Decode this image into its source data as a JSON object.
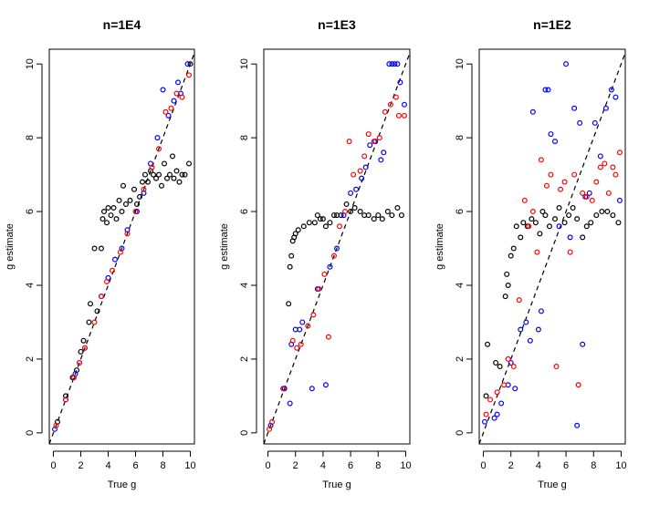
{
  "chart_data": [
    {
      "type": "scatter",
      "title": "n=1E4",
      "xlabel": "True g",
      "ylabel": "g estimate",
      "xlim": [
        -0.3,
        10.3
      ],
      "ylim": [
        -0.3,
        10.4
      ],
      "xticks": [
        "0",
        "2",
        "4",
        "6",
        "8",
        "10"
      ],
      "yticks": [
        "0",
        "2",
        "4",
        "6",
        "8",
        "10"
      ],
      "grid": false,
      "reference_line": "y = x (dashed)",
      "series": [
        {
          "color": "#000000",
          "points": [
            [
              0.3,
              0.3
            ],
            [
              0.9,
              1.0
            ],
            [
              1.4,
              1.5
            ],
            [
              1.7,
              1.7
            ],
            [
              2.0,
              2.2
            ],
            [
              2.2,
              2.5
            ],
            [
              2.6,
              3.0
            ],
            [
              2.7,
              3.5
            ],
            [
              3.0,
              5.0
            ],
            [
              3.2,
              3.3
            ],
            [
              3.5,
              5.0
            ],
            [
              3.6,
              5.8
            ],
            [
              3.7,
              6.0
            ],
            [
              3.9,
              5.7
            ],
            [
              4.0,
              6.1
            ],
            [
              4.2,
              5.9
            ],
            [
              4.4,
              6.1
            ],
            [
              4.6,
              5.8
            ],
            [
              4.8,
              6.3
            ],
            [
              5.0,
              6.0
            ],
            [
              5.1,
              6.7
            ],
            [
              5.3,
              6.2
            ],
            [
              5.6,
              6.3
            ],
            [
              5.9,
              6.6
            ],
            [
              6.1,
              6.2
            ],
            [
              6.3,
              6.4
            ],
            [
              6.5,
              6.8
            ],
            [
              6.7,
              7.0
            ],
            [
              6.9,
              6.8
            ],
            [
              7.1,
              7.1
            ],
            [
              7.3,
              7.0
            ],
            [
              7.5,
              6.9
            ],
            [
              7.7,
              7.0
            ],
            [
              7.9,
              6.7
            ],
            [
              8.1,
              7.3
            ],
            [
              8.3,
              6.9
            ],
            [
              8.5,
              7.0
            ],
            [
              8.7,
              7.5
            ],
            [
              8.8,
              6.9
            ],
            [
              9.0,
              7.1
            ],
            [
              9.2,
              6.8
            ],
            [
              9.4,
              7.0
            ],
            [
              9.6,
              7.0
            ],
            [
              9.9,
              7.3
            ],
            [
              10.0,
              10.0
            ]
          ]
        },
        {
          "color": "#0000ff",
          "points": [
            [
              0.1,
              0.1
            ],
            [
              0.9,
              0.9
            ],
            [
              1.6,
              1.6
            ],
            [
              1.9,
              1.9
            ],
            [
              2.3,
              2.3
            ],
            [
              3.5,
              3.7
            ],
            [
              4.0,
              4.2
            ],
            [
              4.5,
              4.7
            ],
            [
              5.0,
              5.0
            ],
            [
              5.4,
              5.5
            ],
            [
              6.1,
              6.0
            ],
            [
              6.6,
              6.5
            ],
            [
              7.1,
              7.3
            ],
            [
              7.6,
              8.0
            ],
            [
              8.0,
              9.3
            ],
            [
              8.4,
              8.6
            ],
            [
              8.8,
              9.0
            ],
            [
              9.1,
              9.5
            ],
            [
              9.3,
              9.2
            ],
            [
              9.8,
              10.0
            ]
          ]
        },
        {
          "color": "#ff0000",
          "points": [
            [
              0.2,
              0.2
            ],
            [
              0.9,
              0.9
            ],
            [
              1.5,
              1.5
            ],
            [
              1.9,
              1.9
            ],
            [
              2.3,
              2.3
            ],
            [
              3.0,
              3.0
            ],
            [
              3.5,
              3.7
            ],
            [
              3.9,
              4.1
            ],
            [
              4.3,
              4.4
            ],
            [
              4.9,
              4.9
            ],
            [
              5.4,
              5.4
            ],
            [
              6.0,
              6.0
            ],
            [
              6.6,
              6.6
            ],
            [
              7.2,
              7.2
            ],
            [
              7.7,
              7.7
            ],
            [
              8.2,
              8.7
            ],
            [
              8.6,
              8.8
            ],
            [
              9.0,
              9.2
            ],
            [
              9.4,
              9.1
            ],
            [
              9.9,
              9.7
            ]
          ]
        }
      ]
    },
    {
      "type": "scatter",
      "title": "n=1E3",
      "xlabel": "True g",
      "ylabel": "g estimate",
      "xlim": [
        -0.3,
        10.3
      ],
      "ylim": [
        -0.3,
        10.4
      ],
      "xticks": [
        "0",
        "2",
        "4",
        "6",
        "8",
        "10"
      ],
      "yticks": [
        "0",
        "2",
        "4",
        "6",
        "8",
        "10"
      ],
      "grid": false,
      "reference_line": "y = x (dashed)",
      "series": [
        {
          "color": "#000000",
          "points": [
            [
              1.2,
              1.2
            ],
            [
              1.5,
              3.5
            ],
            [
              1.6,
              4.5
            ],
            [
              1.7,
              4.8
            ],
            [
              1.8,
              5.2
            ],
            [
              1.9,
              5.3
            ],
            [
              2.0,
              5.4
            ],
            [
              2.2,
              5.5
            ],
            [
              2.6,
              5.6
            ],
            [
              3.0,
              5.7
            ],
            [
              3.4,
              5.7
            ],
            [
              3.6,
              5.9
            ],
            [
              3.8,
              5.8
            ],
            [
              4.0,
              5.8
            ],
            [
              4.2,
              5.6
            ],
            [
              4.5,
              5.7
            ],
            [
              4.8,
              5.9
            ],
            [
              5.0,
              5.9
            ],
            [
              5.3,
              5.9
            ],
            [
              5.7,
              6.2
            ],
            [
              6.0,
              6.0
            ],
            [
              6.3,
              6.1
            ],
            [
              6.7,
              6.0
            ],
            [
              7.0,
              5.9
            ],
            [
              7.3,
              5.9
            ],
            [
              7.7,
              5.8
            ],
            [
              8.0,
              5.9
            ],
            [
              8.3,
              5.8
            ],
            [
              8.7,
              6.0
            ],
            [
              9.0,
              5.9
            ],
            [
              9.4,
              6.1
            ],
            [
              9.7,
              5.9
            ]
          ]
        },
        {
          "color": "#0000ff",
          "points": [
            [
              0.2,
              0.2
            ],
            [
              1.2,
              1.2
            ],
            [
              1.6,
              0.8
            ],
            [
              1.7,
              2.4
            ],
            [
              2.0,
              2.8
            ],
            [
              2.3,
              2.8
            ],
            [
              2.5,
              3.0
            ],
            [
              3.2,
              1.2
            ],
            [
              3.6,
              3.9
            ],
            [
              4.2,
              1.3
            ],
            [
              4.5,
              4.5
            ],
            [
              5.0,
              5.0
            ],
            [
              5.5,
              5.9
            ],
            [
              6.0,
              6.5
            ],
            [
              6.4,
              6.6
            ],
            [
              6.8,
              6.9
            ],
            [
              7.1,
              7.2
            ],
            [
              7.4,
              7.8
            ],
            [
              7.8,
              7.9
            ],
            [
              8.2,
              7.4
            ],
            [
              8.4,
              7.6
            ],
            [
              8.8,
              10.0
            ],
            [
              9.0,
              10.0
            ],
            [
              9.2,
              10.0
            ],
            [
              9.4,
              10.0
            ],
            [
              9.6,
              9.5
            ],
            [
              9.9,
              8.9
            ]
          ]
        },
        {
          "color": "#ff0000",
          "points": [
            [
              0.1,
              0.1
            ],
            [
              0.3,
              0.3
            ],
            [
              1.1,
              1.2
            ],
            [
              1.8,
              2.5
            ],
            [
              2.1,
              2.3
            ],
            [
              2.4,
              2.4
            ],
            [
              2.9,
              2.9
            ],
            [
              3.3,
              3.2
            ],
            [
              3.7,
              3.9
            ],
            [
              4.1,
              4.3
            ],
            [
              4.4,
              2.6
            ],
            [
              4.8,
              4.8
            ],
            [
              5.2,
              5.6
            ],
            [
              5.6,
              6.0
            ],
            [
              5.9,
              7.9
            ],
            [
              6.2,
              7.0
            ],
            [
              6.7,
              7.1
            ],
            [
              7.0,
              7.5
            ],
            [
              7.3,
              8.1
            ],
            [
              7.7,
              7.9
            ],
            [
              8.1,
              8.0
            ],
            [
              8.5,
              8.7
            ],
            [
              8.9,
              8.9
            ],
            [
              9.3,
              9.1
            ],
            [
              9.5,
              8.6
            ],
            [
              9.9,
              8.6
            ]
          ]
        }
      ]
    },
    {
      "type": "scatter",
      "title": "n=1E2",
      "xlabel": "True g",
      "ylabel": "g estimate",
      "xlim": [
        -0.3,
        10.3
      ],
      "ylim": [
        -0.3,
        10.4
      ],
      "xticks": [
        "0",
        "2",
        "4",
        "6",
        "8",
        "10"
      ],
      "yticks": [
        "0",
        "2",
        "4",
        "6",
        "8",
        "10"
      ],
      "grid": false,
      "reference_line": "y = x (dashed)",
      "series": [
        {
          "color": "#000000",
          "points": [
            [
              0.2,
              1.0
            ],
            [
              0.3,
              2.4
            ],
            [
              0.9,
              1.9
            ],
            [
              1.2,
              1.8
            ],
            [
              1.6,
              3.7
            ],
            [
              1.7,
              4.3
            ],
            [
              1.8,
              4.0
            ],
            [
              2.0,
              4.8
            ],
            [
              2.2,
              5.0
            ],
            [
              2.4,
              5.6
            ],
            [
              2.7,
              5.3
            ],
            [
              2.9,
              5.7
            ],
            [
              3.2,
              5.6
            ],
            [
              3.5,
              5.8
            ],
            [
              3.8,
              5.7
            ],
            [
              4.1,
              5.4
            ],
            [
              4.3,
              6.0
            ],
            [
              4.5,
              5.9
            ],
            [
              4.8,
              5.6
            ],
            [
              5.2,
              5.8
            ],
            [
              5.5,
              6.1
            ],
            [
              5.9,
              5.7
            ],
            [
              6.2,
              5.9
            ],
            [
              6.5,
              6.1
            ],
            [
              6.8,
              5.8
            ],
            [
              7.2,
              5.3
            ],
            [
              7.5,
              5.6
            ],
            [
              7.8,
              5.7
            ],
            [
              8.2,
              5.9
            ],
            [
              8.6,
              6.0
            ],
            [
              9.0,
              6.0
            ],
            [
              9.4,
              5.9
            ],
            [
              9.8,
              5.7
            ]
          ]
        },
        {
          "color": "#0000ff",
          "points": [
            [
              0.1,
              0.3
            ],
            [
              0.8,
              0.4
            ],
            [
              1.0,
              0.5
            ],
            [
              1.3,
              0.8
            ],
            [
              1.8,
              1.3
            ],
            [
              2.0,
              1.9
            ],
            [
              2.3,
              1.2
            ],
            [
              2.7,
              2.8
            ],
            [
              3.1,
              3.0
            ],
            [
              3.4,
              2.5
            ],
            [
              3.6,
              8.7
            ],
            [
              4.0,
              2.8
            ],
            [
              4.2,
              3.3
            ],
            [
              4.5,
              9.3
            ],
            [
              4.7,
              9.3
            ],
            [
              4.9,
              8.1
            ],
            [
              5.2,
              7.9
            ],
            [
              5.5,
              5.6
            ],
            [
              6.0,
              10.0
            ],
            [
              6.3,
              5.3
            ],
            [
              6.6,
              8.8
            ],
            [
              6.8,
              0.2
            ],
            [
              7.0,
              8.4
            ],
            [
              7.2,
              2.4
            ],
            [
              7.4,
              6.4
            ],
            [
              7.7,
              6.5
            ],
            [
              8.1,
              8.4
            ],
            [
              8.5,
              7.5
            ],
            [
              8.9,
              8.8
            ],
            [
              9.3,
              9.3
            ],
            [
              9.6,
              9.1
            ],
            [
              9.9,
              6.3
            ]
          ]
        },
        {
          "color": "#ff0000",
          "points": [
            [
              0.2,
              0.5
            ],
            [
              0.5,
              0.9
            ],
            [
              1.0,
              1.1
            ],
            [
              1.5,
              1.3
            ],
            [
              1.8,
              2.0
            ],
            [
              2.2,
              1.8
            ],
            [
              2.6,
              3.6
            ],
            [
              3.0,
              6.3
            ],
            [
              3.3,
              5.6
            ],
            [
              3.6,
              6.0
            ],
            [
              3.9,
              4.9
            ],
            [
              4.2,
              7.4
            ],
            [
              4.6,
              6.7
            ],
            [
              4.9,
              7.0
            ],
            [
              5.3,
              1.8
            ],
            [
              5.6,
              6.6
            ],
            [
              5.9,
              6.8
            ],
            [
              6.3,
              4.9
            ],
            [
              6.6,
              7.0
            ],
            [
              6.9,
              1.3
            ],
            [
              7.2,
              6.5
            ],
            [
              7.5,
              6.4
            ],
            [
              7.9,
              6.3
            ],
            [
              8.2,
              6.8
            ],
            [
              8.5,
              7.2
            ],
            [
              8.8,
              7.3
            ],
            [
              9.1,
              6.5
            ],
            [
              9.4,
              7.2
            ],
            [
              9.6,
              7.0
            ],
            [
              9.9,
              7.6
            ]
          ]
        }
      ]
    }
  ]
}
